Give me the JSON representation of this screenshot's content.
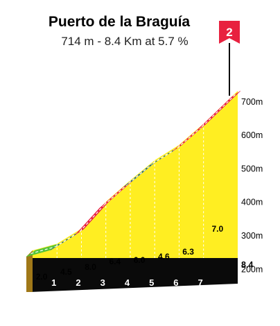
{
  "header": {
    "title": "Puerto de la Braguía",
    "subtitle": "714 m - 8.4 Km at 5.7 %"
  },
  "category": "2",
  "chart_data": {
    "type": "area",
    "title": "Puerto de la Braguía",
    "subtitle": "714 m - 8.4 Km at 5.7 %",
    "x_ticks": [
      "1",
      "2",
      "3",
      "4",
      "5",
      "6",
      "7"
    ],
    "total_distance_label": "8.4",
    "y_ticks": [
      "200m",
      "300m",
      "400m",
      "500m",
      "600m",
      "700m"
    ],
    "segments": [
      {
        "from_km": 0,
        "to_km": 1,
        "gradient": 2.0,
        "label": "2.0",
        "color": "#55c43a"
      },
      {
        "from_km": 1,
        "to_km": 2,
        "gradient": 4.5,
        "label": "4.5",
        "color": "#0f5a8a"
      },
      {
        "from_km": 2,
        "to_km": 3,
        "gradient": 8.0,
        "label": "8.0",
        "color": "#e8213f"
      },
      {
        "from_km": 3,
        "to_km": 4,
        "gradient": 6.4,
        "label": "6.4",
        "color": "#e8213f"
      },
      {
        "from_km": 4,
        "to_km": 5,
        "gradient": 6.0,
        "label": "6.0",
        "color": "#0f5a8a"
      },
      {
        "from_km": 5,
        "to_km": 6,
        "gradient": 4.6,
        "label": "4.6",
        "color": "#0f5a8a"
      },
      {
        "from_km": 6,
        "to_km": 7,
        "gradient": 6.3,
        "label": "6.3",
        "color": "#e8213f"
      },
      {
        "from_km": 7,
        "to_km": 8.4,
        "gradient": 7.0,
        "label": "7.0",
        "color": "#e8213f"
      }
    ],
    "ylim": [
      100,
      714
    ],
    "xlim": [
      0,
      8.4
    ]
  }
}
